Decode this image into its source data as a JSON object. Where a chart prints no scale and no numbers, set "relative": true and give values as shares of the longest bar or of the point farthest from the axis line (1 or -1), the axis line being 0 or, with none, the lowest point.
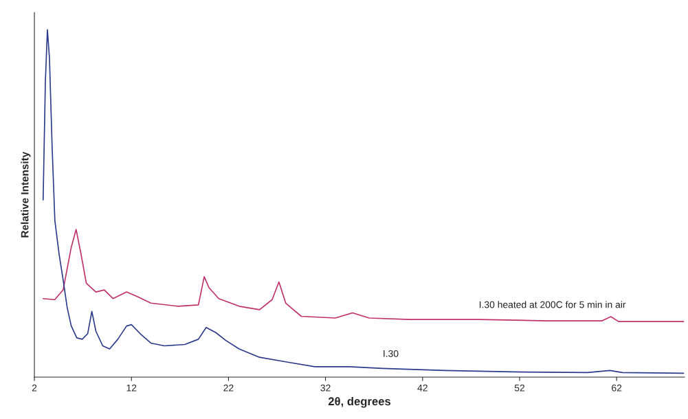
{
  "chart_data": {
    "type": "line",
    "relative": true,
    "xlabel": "2θ, degrees",
    "ylabel": "Relative Intensity",
    "xlim": [
      2,
      69
    ],
    "xticks": [
      2,
      12,
      22,
      32,
      42,
      52,
      62
    ],
    "grid": false,
    "legend": false,
    "marker": "none",
    "line_style": "solid",
    "series": [
      {
        "name": "I.30 heated at 200C for 5 min in air",
        "color": "#c0306a",
        "x": [
          2.9,
          4.1,
          4.96,
          5.8,
          6.3,
          6.8,
          7.35,
          8.34,
          9.2,
          10.1,
          11.5,
          12.6,
          14.0,
          16.8,
          18.9,
          19.5,
          20.0,
          21.0,
          23.1,
          25.2,
          26.5,
          27.2,
          27.9,
          29.5,
          33.0,
          34.8,
          36.5,
          40.7,
          47.8,
          54.8,
          60.5,
          61.4,
          62.2,
          68.9
        ],
        "values": [
          0.226,
          0.223,
          0.251,
          0.374,
          0.425,
          0.355,
          0.27,
          0.245,
          0.251,
          0.226,
          0.245,
          0.232,
          0.213,
          0.204,
          0.208,
          0.289,
          0.257,
          0.226,
          0.204,
          0.194,
          0.223,
          0.274,
          0.213,
          0.175,
          0.17,
          0.185,
          0.17,
          0.166,
          0.166,
          0.162,
          0.162,
          0.174,
          0.16,
          0.16
        ]
      },
      {
        "name": "I.30",
        "color": "#2b3a8a",
        "x": [
          2.9,
          3.13,
          3.34,
          3.55,
          3.83,
          4.11,
          4.54,
          4.96,
          5.38,
          5.8,
          6.37,
          6.93,
          7.49,
          7.92,
          8.34,
          9.04,
          9.75,
          10.6,
          11.5,
          12.0,
          12.9,
          14.0,
          15.4,
          17.5,
          18.9,
          19.7,
          20.7,
          21.7,
          23.1,
          25.2,
          28.1,
          30.9,
          34.4,
          37.9,
          44.3,
          51.3,
          59.0,
          61.3,
          62.6,
          68.9
        ],
        "values": [
          0.51,
          0.85,
          1.0,
          0.92,
          0.66,
          0.45,
          0.355,
          0.28,
          0.2,
          0.147,
          0.113,
          0.109,
          0.125,
          0.189,
          0.132,
          0.09,
          0.081,
          0.109,
          0.147,
          0.151,
          0.125,
          0.098,
          0.09,
          0.094,
          0.109,
          0.143,
          0.128,
          0.106,
          0.081,
          0.057,
          0.043,
          0.03,
          0.03,
          0.025,
          0.019,
          0.015,
          0.013,
          0.019,
          0.013,
          0.011
        ]
      }
    ]
  }
}
